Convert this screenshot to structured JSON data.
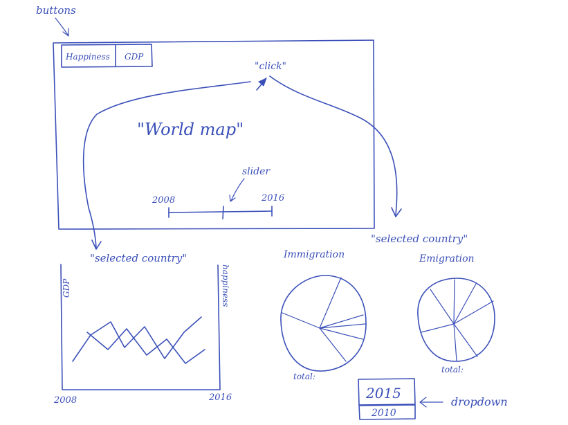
{
  "annotations": {
    "buttons": "buttons",
    "click": "\"click\"",
    "world_map": "\"World map\"",
    "slider": "slider",
    "selected_country_1": "\"selected country\"",
    "selected_country_2": "\"selected country\"",
    "dropdown": "dropdown"
  },
  "map_buttons": [
    "Happiness",
    "GDP"
  ],
  "slider": {
    "min_label": "2008",
    "max_label": "2016"
  },
  "line_chart": {
    "left_axis_label": "GDP",
    "right_axis_label": "happiness",
    "x_start": "2008",
    "x_end": "2016"
  },
  "pies": {
    "immigration": {
      "title": "Immigration",
      "total_label": "total:"
    },
    "emigration": {
      "title": "Emigration",
      "total_label": "total:"
    }
  },
  "dropdown": {
    "selected": "2015",
    "option": "2010"
  },
  "colors": {
    "ink": "#3a4fb8",
    "background": "#ffffff"
  }
}
